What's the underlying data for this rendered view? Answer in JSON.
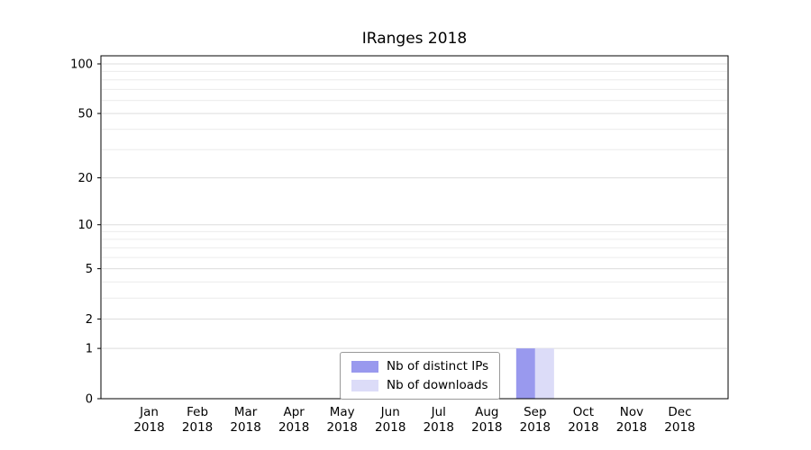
{
  "page": {
    "background": "#ffffff"
  },
  "chart_data": {
    "type": "bar",
    "title": "IRanges 2018",
    "categories": [
      "Jan",
      "Feb",
      "Mar",
      "Apr",
      "May",
      "Jun",
      "Jul",
      "Aug",
      "Sep",
      "Oct",
      "Nov",
      "Dec"
    ],
    "xlabel_year": "2018",
    "series": [
      {
        "name": "Nb of distinct IPs",
        "color": "#9999ee",
        "values": [
          0,
          0,
          0,
          0,
          0,
          0,
          0,
          0,
          1,
          0,
          0,
          0
        ]
      },
      {
        "name": "Nb of downloads",
        "color": "#dcdcf8",
        "values": [
          0,
          0,
          0,
          0,
          0,
          0,
          0,
          0,
          1,
          0,
          0,
          0
        ]
      }
    ],
    "yscale": "log1p",
    "ytick_values": [
      0,
      1,
      2,
      5,
      10,
      20,
      50,
      100
    ],
    "minor_grid_values": [
      1,
      2,
      3,
      4,
      5,
      6,
      7,
      8,
      9,
      10,
      20,
      30,
      40,
      50,
      60,
      70,
      80,
      90,
      100
    ],
    "ylim": [
      0,
      112
    ],
    "xlabel": "",
    "ylabel": "",
    "grid": true,
    "legend_position": "inside-bottom-center"
  },
  "legend": {
    "items": [
      {
        "label": "Nb of distinct IPs",
        "color": "#9999ee"
      },
      {
        "label": "Nb of downloads",
        "color": "#dcdcf8"
      }
    ]
  },
  "colors": {
    "plot_border": "#000000",
    "grid_major": "#dddddd",
    "grid_minor": "#ececec",
    "text": "#000000",
    "legend_border": "#999999"
  }
}
